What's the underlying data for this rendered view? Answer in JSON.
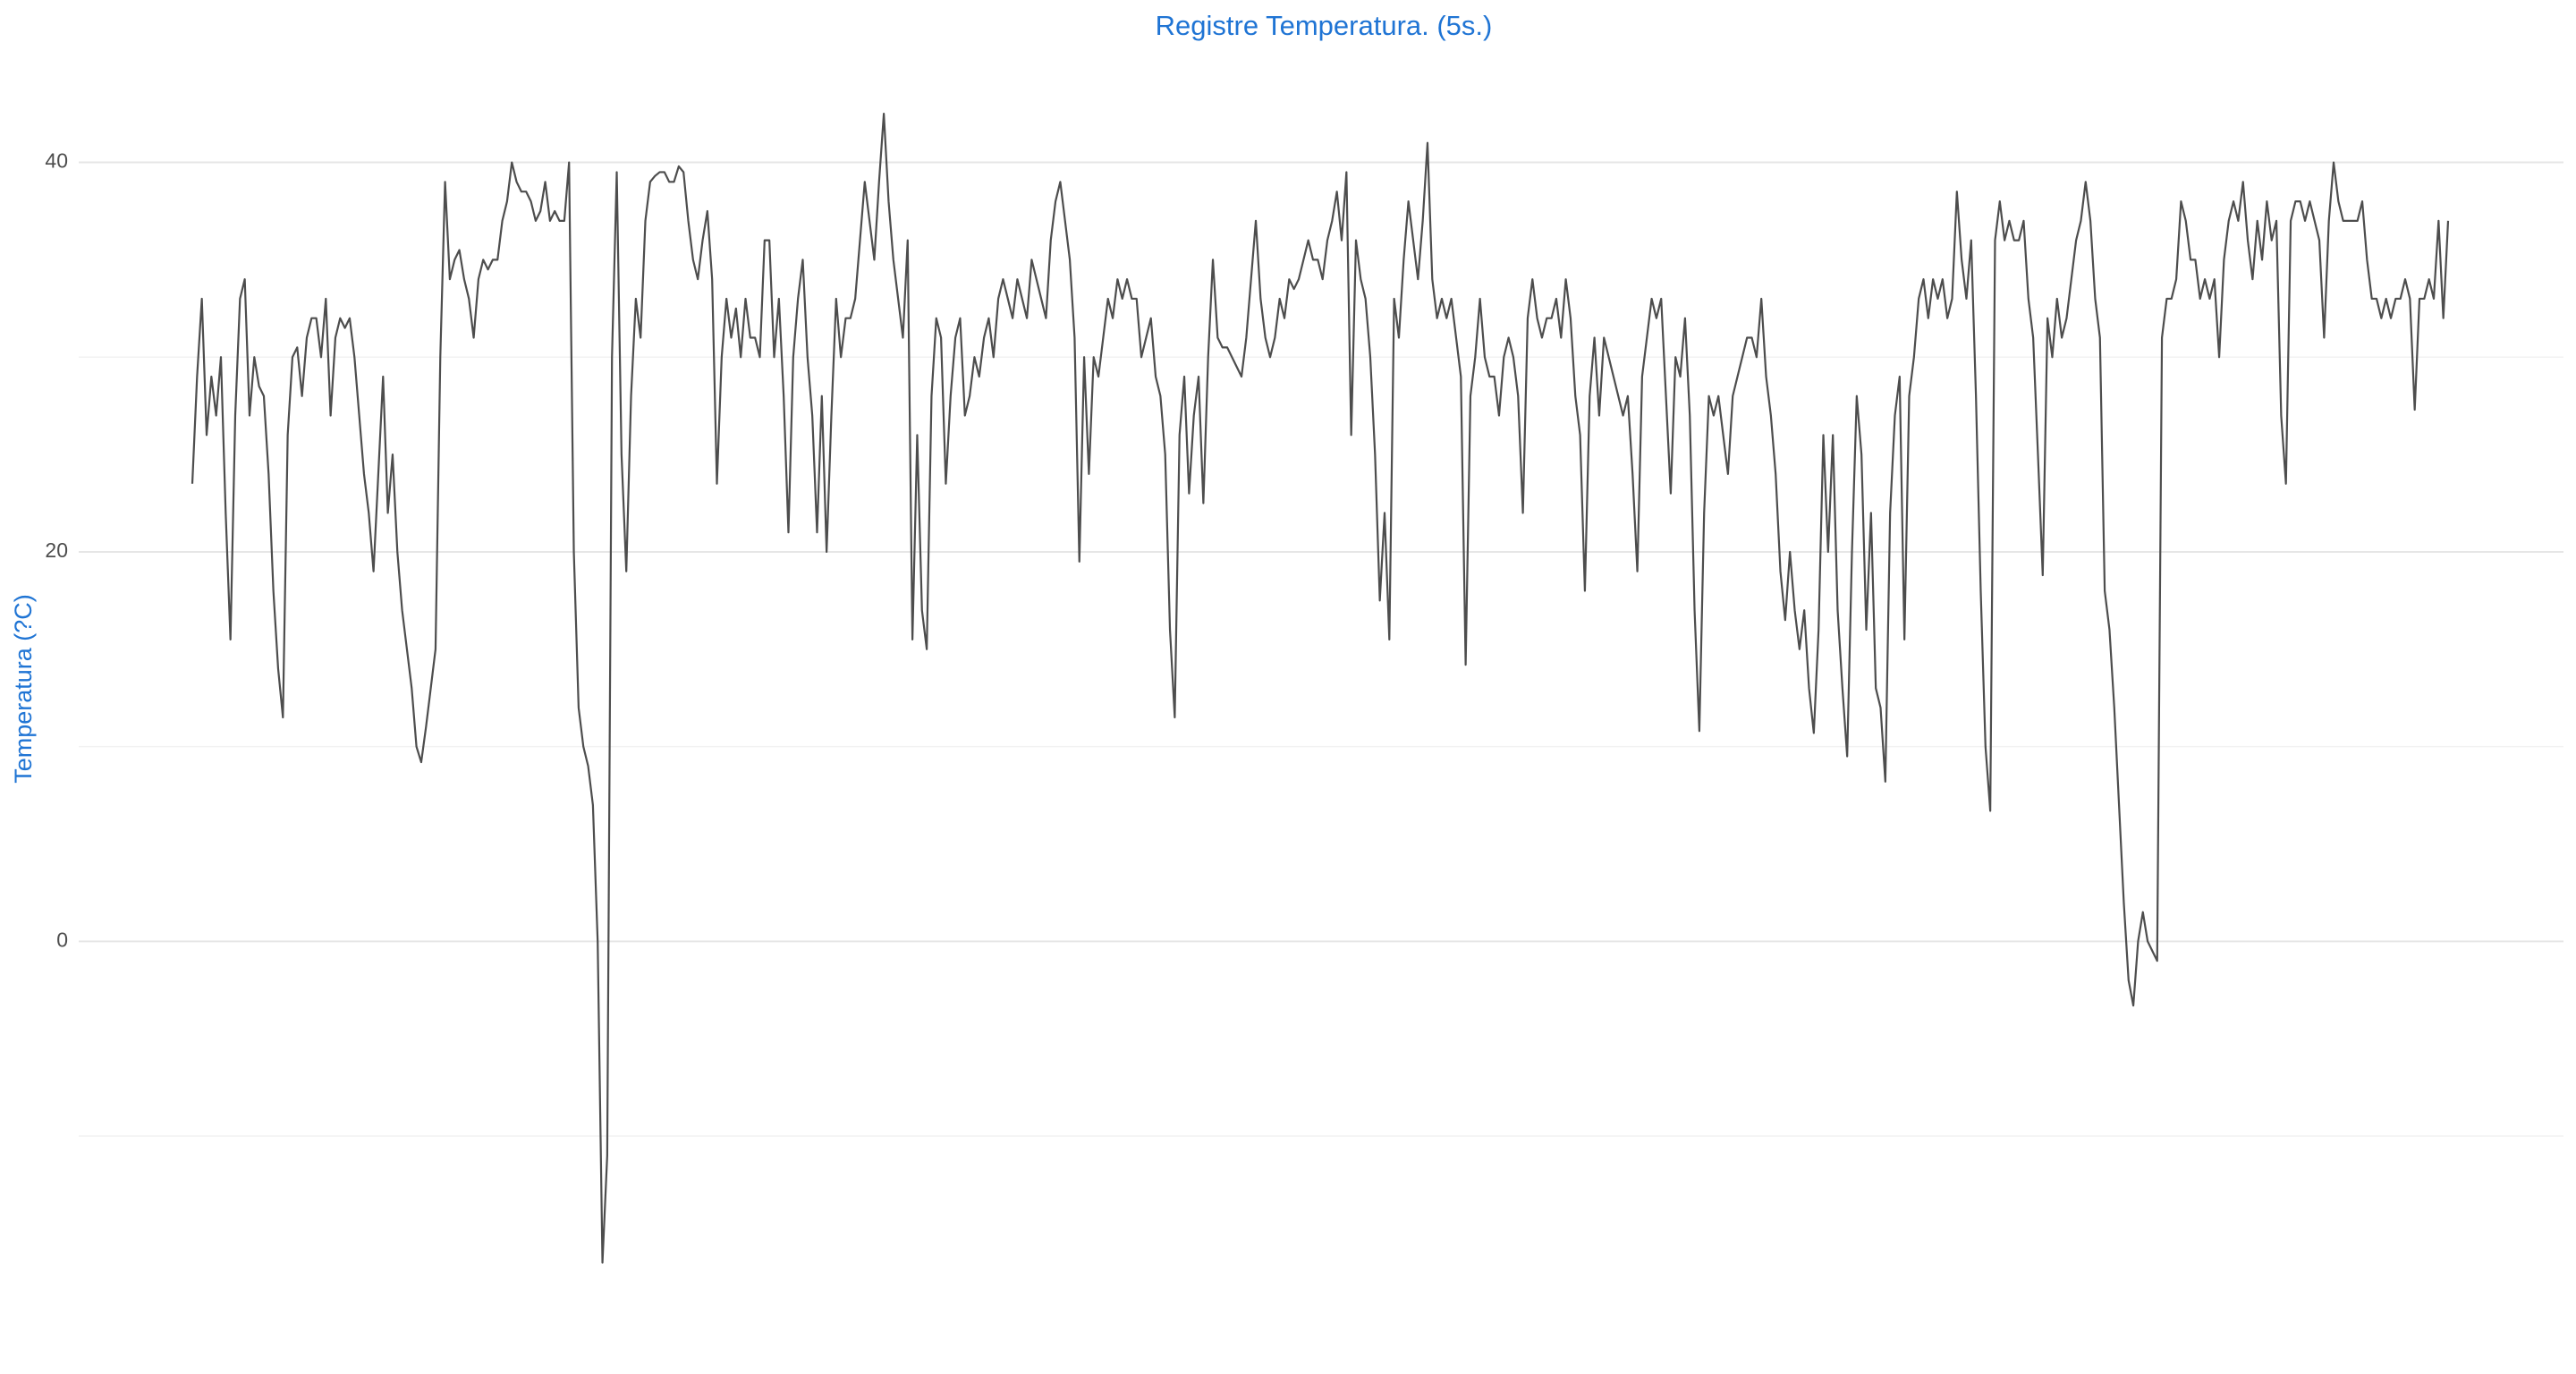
{
  "chart_data": {
    "type": "line",
    "title": "Registre Temperatura. (5s.)",
    "y_label": "Temperatura (?C)",
    "ylim": [
      -19.6,
      45.4
    ],
    "yticks": [
      0,
      20,
      40
    ],
    "y_minor_grid": [
      -10,
      10,
      30
    ],
    "grid": true,
    "color": "#4d4d4d",
    "title_color": "#1f74d4",
    "values": [
      23.5,
      29,
      33,
      26,
      29,
      27,
      30,
      22,
      15.5,
      27,
      33,
      34,
      27,
      30,
      28.5,
      28,
      24,
      18,
      14,
      11.5,
      26,
      30,
      30.5,
      28,
      31,
      32,
      32,
      30,
      33,
      27,
      31,
      32,
      31.5,
      32,
      30,
      27,
      24,
      22,
      19,
      24,
      29,
      22,
      25,
      20,
      17,
      15,
      13,
      10,
      9.2,
      11,
      13,
      15,
      30,
      39,
      34,
      35,
      35.5,
      34,
      33,
      31,
      34,
      35,
      34.5,
      35,
      35,
      37,
      38,
      40,
      39,
      38.5,
      38.5,
      38,
      37,
      37.5,
      39,
      37,
      37.5,
      37,
      37,
      40,
      20,
      12,
      10,
      9,
      7,
      0,
      -16.5,
      -11,
      30,
      39.5,
      25,
      19,
      28,
      33,
      31,
      37,
      39,
      39.3,
      39.5,
      39.5,
      39,
      39,
      39.8,
      39.5,
      37,
      35,
      34,
      36,
      37.5,
      34,
      23.5,
      30,
      33,
      31,
      32.5,
      30,
      33,
      31,
      31,
      30,
      36,
      36,
      30,
      33,
      28,
      21,
      30,
      33,
      35,
      30,
      27,
      21,
      28,
      20,
      27,
      33,
      30,
      32,
      32,
      33,
      36,
      39,
      37,
      35,
      39,
      42.5,
      38,
      35,
      33,
      31,
      36,
      15.5,
      26,
      17,
      15,
      28,
      32,
      31,
      23.5,
      28,
      31,
      32,
      27,
      28,
      30,
      29,
      31,
      32,
      30,
      33,
      34,
      33,
      32,
      34,
      33,
      32,
      35,
      34,
      33,
      32,
      36,
      38,
      39,
      37,
      35,
      31,
      19.5,
      30,
      24,
      30,
      29,
      31,
      33,
      32,
      34,
      33,
      34,
      33,
      33,
      30,
      31,
      32,
      29,
      28,
      25,
      16,
      11.5,
      26,
      29,
      23,
      27,
      29,
      22.5,
      30,
      35,
      31,
      30.5,
      30.5,
      30,
      29.5,
      29,
      31,
      34,
      37,
      33,
      31,
      30,
      31,
      33,
      32,
      34,
      33.5,
      34,
      35,
      36,
      35,
      35,
      34,
      36,
      37,
      38.5,
      36,
      39.5,
      26,
      36,
      34,
      33,
      30,
      25,
      17.5,
      22,
      15.5,
      33,
      31,
      35,
      38,
      36,
      34,
      37,
      41,
      34,
      32,
      33,
      32,
      33,
      31,
      29,
      14.2,
      28,
      30,
      33,
      30,
      29,
      29,
      27,
      30,
      31,
      30,
      28,
      22,
      32,
      34,
      32,
      31,
      32,
      32,
      33,
      31,
      34,
      32,
      28,
      26,
      18,
      28,
      31,
      27,
      31,
      30,
      29,
      28,
      27,
      28,
      24,
      19,
      29,
      31,
      33,
      32,
      33,
      28,
      23,
      30,
      29,
      32,
      27,
      17,
      10.8,
      22,
      28,
      27,
      28,
      26,
      24,
      28,
      29,
      30,
      31,
      31,
      30,
      33,
      29,
      27,
      24,
      19,
      16.5,
      20,
      17,
      15,
      17,
      13,
      10.7,
      16,
      26,
      20,
      26,
      17,
      13,
      9.5,
      20,
      28,
      25,
      16,
      22,
      13,
      12,
      8.2,
      22,
      27,
      29,
      15.5,
      28,
      30,
      33,
      34,
      32,
      34,
      33,
      34,
      32,
      33,
      38.5,
      35,
      33,
      36,
      28,
      18,
      10,
      6.7,
      36,
      38,
      36,
      37,
      36,
      36,
      37,
      33,
      31,
      25,
      18.8,
      32,
      30,
      33,
      31,
      32,
      34,
      36,
      37,
      39,
      37,
      33,
      31,
      18,
      16,
      12,
      7,
      2,
      -2,
      -3.3,
      0,
      1.5,
      0,
      -0.5,
      -1,
      31,
      33,
      33,
      34,
      38,
      37,
      35,
      35,
      33,
      34,
      33,
      34,
      30,
      35,
      37,
      38,
      37,
      39,
      36,
      34,
      37,
      35,
      38,
      36,
      37,
      27,
      23.5,
      37,
      38,
      38,
      37,
      38,
      37,
      36,
      31,
      37,
      40,
      38,
      37,
      37,
      37,
      37,
      38,
      35,
      33,
      33,
      32,
      33,
      32,
      33,
      33,
      34,
      33,
      27.3,
      33,
      33,
      34,
      33,
      37,
      32,
      37
    ]
  }
}
